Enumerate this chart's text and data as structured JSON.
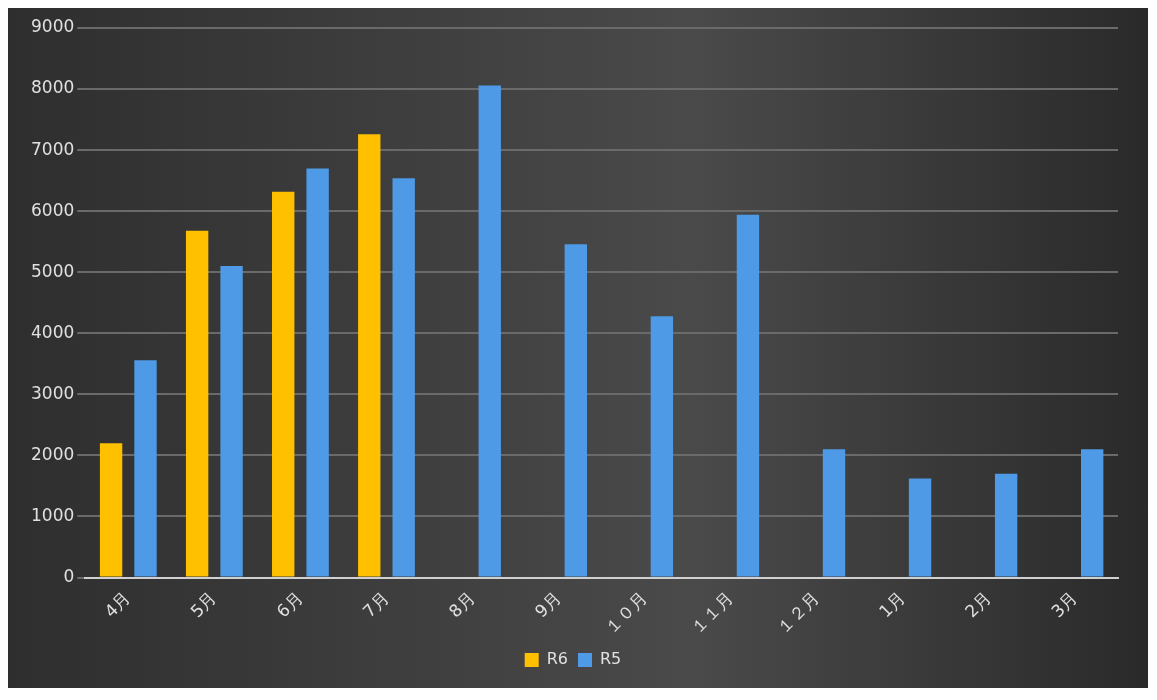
{
  "chart_data": {
    "type": "bar",
    "categories": [
      "4月",
      "5月",
      "6月",
      "7月",
      "8月",
      "9月",
      "１０月",
      "１１月",
      "１２月",
      "1月",
      "2月",
      "3月"
    ],
    "series": [
      {
        "name": "R6",
        "color": "#ffc000",
        "values": [
          2200,
          5680,
          6320,
          7260,
          null,
          null,
          null,
          null,
          null,
          null,
          null,
          null
        ]
      },
      {
        "name": "R5",
        "color": "#4e9ae6",
        "values": [
          3560,
          5100,
          6700,
          6540,
          8060,
          5460,
          4280,
          5940,
          2100,
          1620,
          1700,
          2100
        ]
      }
    ],
    "ylim": [
      0,
      9000
    ],
    "yticks": [
      0,
      1000,
      2000,
      3000,
      4000,
      5000,
      6000,
      7000,
      8000,
      9000
    ],
    "grid": "y",
    "legend": "bottom"
  }
}
